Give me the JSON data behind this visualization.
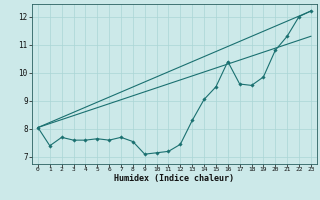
{
  "xlabel": "Humidex (Indice chaleur)",
  "background_color": "#cce9e9",
  "line_color": "#1a7070",
  "grid_color": "#aad6d6",
  "xlim": [
    -0.5,
    23.5
  ],
  "ylim": [
    6.75,
    12.45
  ],
  "yticks": [
    7,
    8,
    9,
    10,
    11,
    12
  ],
  "xticks": [
    0,
    1,
    2,
    3,
    4,
    5,
    6,
    7,
    8,
    9,
    10,
    11,
    12,
    13,
    14,
    15,
    16,
    17,
    18,
    19,
    20,
    21,
    22,
    23
  ],
  "line1_x": [
    0,
    1,
    2,
    3,
    4,
    5,
    6,
    7,
    8,
    9,
    10,
    11,
    12,
    13,
    14,
    15,
    16,
    17,
    18,
    19,
    20,
    21,
    22,
    23
  ],
  "line1_y": [
    8.05,
    7.4,
    7.7,
    7.6,
    7.6,
    7.65,
    7.6,
    7.7,
    7.55,
    7.1,
    7.15,
    7.2,
    7.45,
    8.3,
    9.05,
    9.5,
    10.4,
    9.6,
    9.55,
    9.85,
    10.8,
    11.3,
    12.0,
    12.2
  ],
  "line2_x": [
    0,
    23
  ],
  "line2_y": [
    8.05,
    12.2
  ],
  "line3_x": [
    0,
    23
  ],
  "line3_y": [
    8.05,
    11.3
  ]
}
